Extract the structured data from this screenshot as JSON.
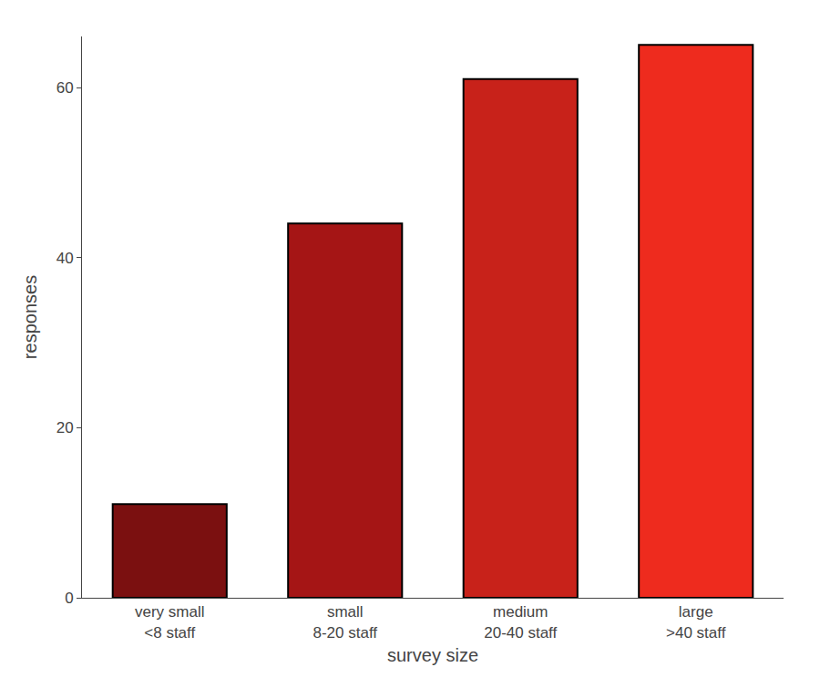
{
  "chart_data": {
    "type": "bar",
    "categories": [
      "very small\n<8 staff",
      "small\n8-20 staff",
      "medium\n20-40 staff",
      "large\n>40 staff"
    ],
    "values": [
      11,
      44,
      61,
      65
    ],
    "colors": [
      "#7B1010",
      "#A51515",
      "#C8221A",
      "#EE2B1E"
    ],
    "xlabel": "survey size",
    "ylabel": "responses",
    "ylim": [
      0,
      66
    ],
    "yticks": [
      0,
      20,
      40,
      60
    ],
    "grid": false
  }
}
